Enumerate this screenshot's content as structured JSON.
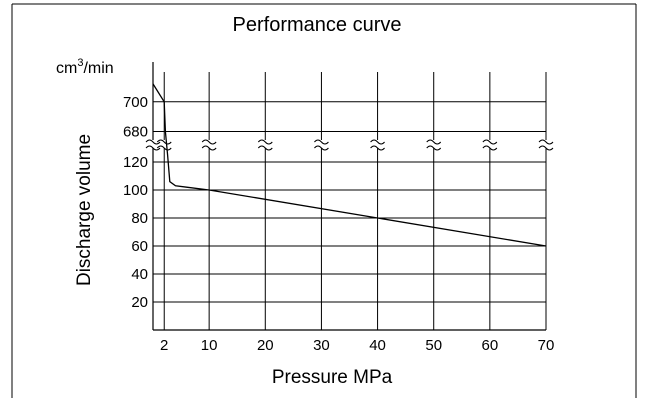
{
  "chart_data": {
    "type": "line",
    "title": "Performance curve",
    "xlabel": "Pressure MPa",
    "ylabel": "Discharge volume",
    "yunit_base": "cm",
    "yunit_exp": "3",
    "yunit_tail": "/min",
    "x_ticks": [
      2,
      10,
      20,
      30,
      40,
      50,
      60,
      70
    ],
    "x_tick_labels": [
      "2",
      "10",
      "20",
      "30",
      "40",
      "50",
      "60",
      "70"
    ],
    "xlim": [
      0,
      70
    ],
    "y_ticks_lower": [
      20,
      40,
      60,
      80,
      100,
      120
    ],
    "y_tick_labels_lower": [
      "20",
      "40",
      "60",
      "80",
      "100",
      "120"
    ],
    "y_ticks_upper": [
      680,
      700
    ],
    "y_tick_labels_upper": [
      "680",
      "700"
    ],
    "ylim_lower": [
      0,
      125
    ],
    "ylim_upper": [
      675,
      720
    ],
    "axis_break": true,
    "grid": true,
    "series": [
      {
        "x": [
          0,
          2,
          2.2,
          2.6,
          3.0,
          4.0,
          6.0,
          10,
          40,
          70
        ],
        "y": [
          712,
          700,
          680,
          125,
          106,
          103,
          102,
          100,
          80,
          60
        ]
      }
    ]
  }
}
